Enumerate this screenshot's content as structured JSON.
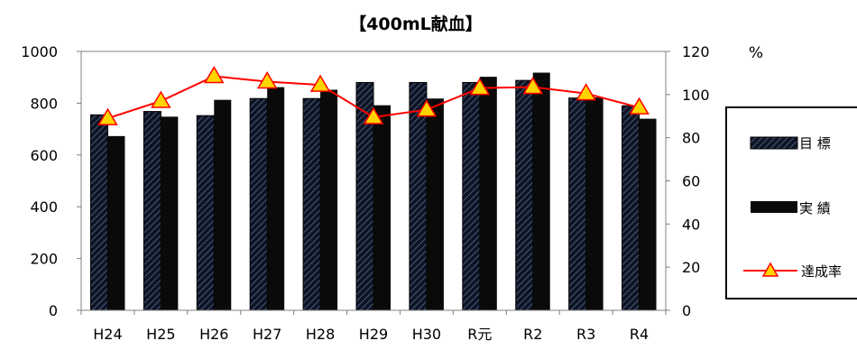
{
  "chart_data": {
    "type": "bar",
    "title": "【400mL献血】",
    "categories": [
      "H24",
      "H25",
      "H26",
      "H27",
      "H28",
      "H29",
      "H30",
      "R元",
      "R2",
      "R3",
      "R4"
    ],
    "series": [
      {
        "name": "目 標",
        "type": "bar",
        "axis": "left",
        "pattern": "hatched",
        "values": [
          755,
          768,
          752,
          818,
          818,
          880,
          880,
          880,
          888,
          820,
          790
        ]
      },
      {
        "name": "実 績",
        "type": "bar",
        "axis": "left",
        "pattern": "solid",
        "values": [
          673,
          748,
          813,
          862,
          852,
          792,
          818,
          902,
          918,
          822,
          740
        ]
      },
      {
        "name": "達成率",
        "type": "line",
        "axis": "right",
        "marker": "triangle",
        "values": [
          89,
          97,
          108.5,
          106,
          104.5,
          89.5,
          93,
          103,
          103.5,
          100.5,
          94
        ]
      }
    ],
    "y_left": {
      "min": 0,
      "max": 1000,
      "ticks": [
        0,
        200,
        400,
        600,
        800,
        1000
      ]
    },
    "y_right": {
      "min": 0,
      "max": 120,
      "ticks": [
        0,
        20,
        40,
        60,
        80,
        100,
        120
      ],
      "unit": "%"
    },
    "colors": {
      "bar": "#0a0a0a",
      "hatch": "#2f3e5c",
      "line": "#ff0000",
      "marker_fill": "#ffd400",
      "marker_stroke": "#ff0000"
    },
    "grid": false,
    "legend_position": "right"
  }
}
